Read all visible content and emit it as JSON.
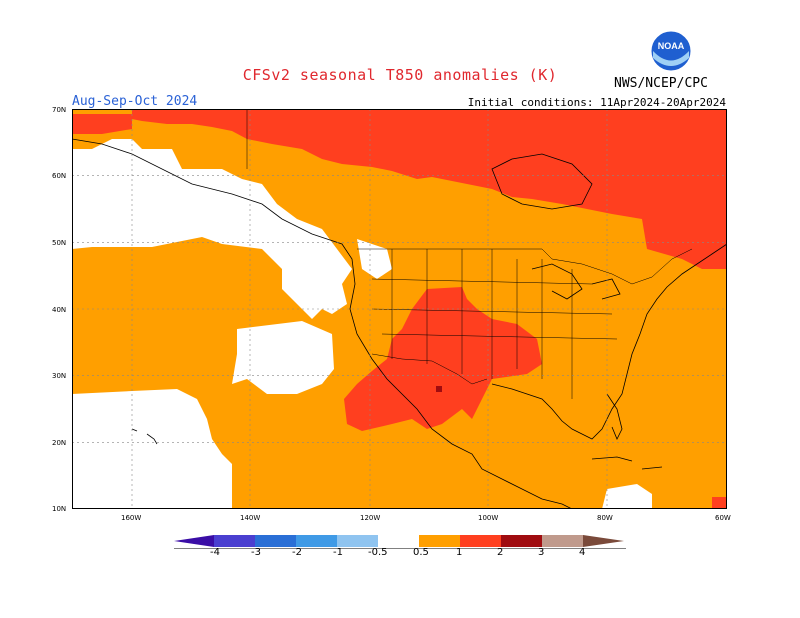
{
  "title": "CFSv2 seasonal T850 anomalies (K)",
  "period": "Aug-Sep-Oct 2024",
  "initial_conditions": "Initial conditions: 11Apr2024-20Apr2024",
  "agency": "NWS/NCEP/CPC",
  "logo_text": "NOAA",
  "lat_labels": [
    "70N",
    "60N",
    "50N",
    "40N",
    "30N",
    "20N",
    "10N"
  ],
  "lon_labels": [
    "160W",
    "140W",
    "120W",
    "100W",
    "80W",
    "60W"
  ],
  "legend": {
    "ticks": [
      "-4",
      "-3",
      "-2",
      "-1",
      "-0.5",
      "0.5",
      "1",
      "2",
      "3",
      "4"
    ],
    "colors": {
      "lt_-4": "#3a0da6",
      "-4_-3": "#4a3fd0",
      "-3_-2": "#2a6fd6",
      "-2_-1": "#3f9ae6",
      "-1_-0.5": "#8fc4f0",
      "-0.5_0.5": "#ffffff",
      "0.5_1": "#ff9f00",
      "1_2": "#ff3f1f",
      "2_3": "#a00c10",
      "3_4": "#c09a8c",
      "gt_4": "#7a4a3a"
    }
  },
  "colors": {
    "title": "#e0282e",
    "period": "#2b62d6",
    "anomaly_0.5_1": "#ff9f00",
    "anomaly_1_2": "#ff3f1f",
    "anomaly_2_3": "#a00c10"
  }
}
